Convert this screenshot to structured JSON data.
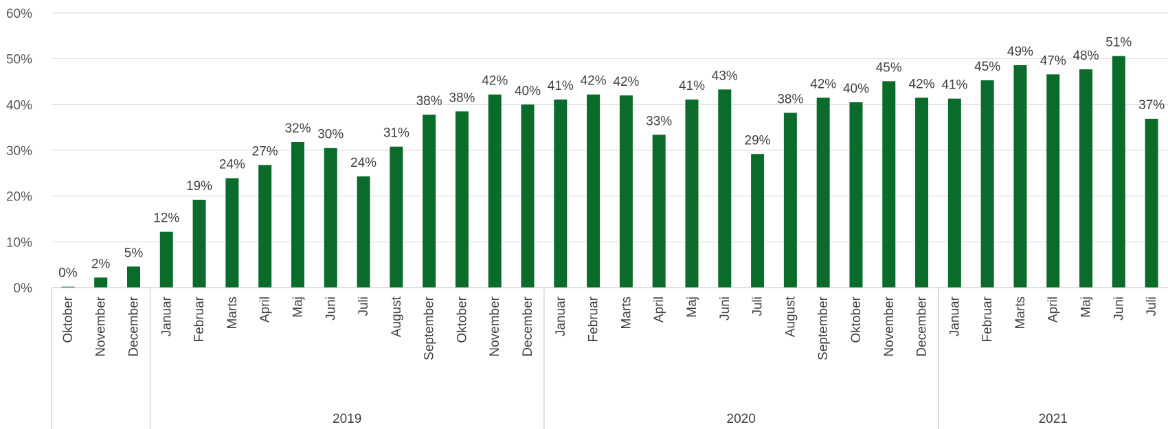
{
  "chart_data": {
    "type": "bar",
    "title": "",
    "xlabel": "",
    "ylabel": "",
    "ylim": [
      0,
      60
    ],
    "y_ticks": [
      "0%",
      "10%",
      "20%",
      "30%",
      "40%",
      "50%",
      "60%"
    ],
    "grid": true,
    "legend": "none",
    "bar_color": "#0a6b2a",
    "categories": [
      "Oktober",
      "November",
      "December",
      "Januar",
      "Februar",
      "Marts",
      "April",
      "Maj",
      "Juni",
      "Juli",
      "August",
      "September",
      "Oktober",
      "November",
      "December",
      "Januar",
      "Februar",
      "Marts",
      "April",
      "Maj",
      "Juni",
      "Juli",
      "August",
      "September",
      "Oktober",
      "November",
      "December",
      "Januar",
      "Februar",
      "Marts",
      "April",
      "Maj",
      "Juni",
      "Juli"
    ],
    "values": [
      0.2,
      2.2,
      4.6,
      12.2,
      19.2,
      23.9,
      26.8,
      31.8,
      30.5,
      24.3,
      30.8,
      37.8,
      38.5,
      42.2,
      40.0,
      41.1,
      42.2,
      42.0,
      33.4,
      41.1,
      43.3,
      29.2,
      38.2,
      41.5,
      40.5,
      45.1,
      41.5,
      41.3,
      45.3,
      48.6,
      46.6,
      47.7,
      50.6,
      36.9
    ],
    "data_labels": [
      "0%",
      "2%",
      "5%",
      "12%",
      "19%",
      "24%",
      "27%",
      "32%",
      "30%",
      "24%",
      "31%",
      "38%",
      "38%",
      "42%",
      "40%",
      "41%",
      "42%",
      "42%",
      "33%",
      "41%",
      "43%",
      "29%",
      "38%",
      "42%",
      "40%",
      "45%",
      "42%",
      "41%",
      "45%",
      "49%",
      "47%",
      "48%",
      "51%",
      "37%"
    ],
    "groups": [
      {
        "label": "",
        "count": 3
      },
      {
        "label": "2019",
        "count": 12
      },
      {
        "label": "2020",
        "count": 12
      },
      {
        "label": "2021",
        "count": 7
      }
    ]
  }
}
